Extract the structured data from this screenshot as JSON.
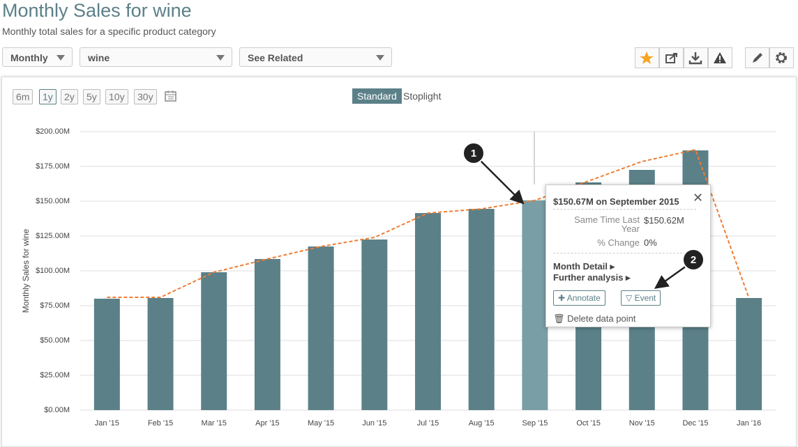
{
  "header": {
    "title": "Monthly Sales for wine",
    "subtitle": "Monthly total sales for a specific product category"
  },
  "filters": [
    "Monthly",
    "wine",
    "See Related"
  ],
  "ranges": [
    "6m",
    "1y",
    "2y",
    "5y",
    "10y",
    "30y"
  ],
  "views": [
    "Standard",
    "Stoplight"
  ],
  "chart_data": {
    "type": "bar",
    "y_label": "Monthly Sales for wine",
    "categories": [
      "Jan '15",
      "Feb '15",
      "Mar '15",
      "Apr '15",
      "May '15",
      "Jun '15",
      "Jul '15",
      "Aug '15",
      "Sep '15",
      "Oct '15",
      "Nov '15",
      "Dec '15",
      "Jan '16"
    ],
    "series": [
      {
        "type": "bar",
        "colors": [
          "#5b8088",
          "#5b8088",
          "#5b8088",
          "#5b8088",
          "#5b8088",
          "#5b8088",
          "#5b8088",
          "#5b8088",
          "#7a9ea5",
          "#5b8088",
          "#5b8088",
          "#5b8088",
          "#5b8088"
        ],
        "values": [
          80,
          80.5,
          99,
          108.5,
          117.5,
          122.5,
          141.5,
          144.5,
          150.67,
          163.5,
          172.5,
          186.5,
          80.5
        ]
      },
      {
        "type": "line",
        "color": "#f07d33",
        "values": [
          81,
          81,
          99,
          108.5,
          117.5,
          124,
          141.5,
          144.5,
          150.62,
          164.5,
          178.5,
          187,
          80.5
        ]
      }
    ],
    "ylim": [
      0,
      200
    ],
    "yticks": [
      {
        "value": 0,
        "label": "$0.00M"
      },
      {
        "value": 25,
        "label": "$25.00M"
      },
      {
        "value": 50,
        "label": "$50.00M"
      },
      {
        "value": 75,
        "label": "$75.00M"
      },
      {
        "value": 100,
        "label": "$100.00M"
      },
      {
        "value": 125,
        "label": "$125.00M"
      },
      {
        "value": 150,
        "label": "$150.00M"
      },
      {
        "value": 175,
        "label": "$175.00M"
      },
      {
        "value": 200,
        "label": "$200.00M"
      }
    ],
    "grid": true
  },
  "tooltip": {
    "title": "$150.67M on September 2015",
    "last_year_label": "Same Time Last Year",
    "last_year_value": "$150.62M",
    "change_label": "% Change",
    "change_value": "0%",
    "links": [
      "Month Detail",
      "Further analysis"
    ],
    "buttons": [
      "Annotate",
      "Event"
    ],
    "delete": "Delete data point"
  },
  "callouts": [
    "1",
    "2"
  ]
}
